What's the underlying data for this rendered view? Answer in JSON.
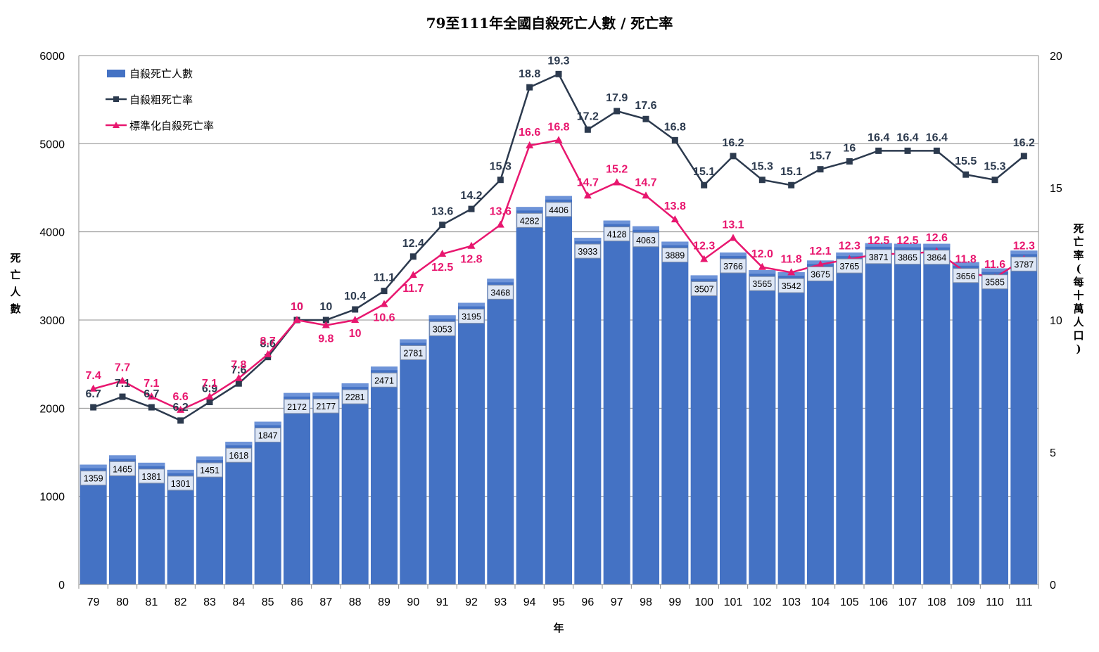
{
  "chart_data": {
    "type": "bar",
    "title": "79至111年全國自殺死亡人數 / 死亡率",
    "xlabel": "年",
    "ylabel": "死亡人數",
    "y2label": "死亡率(每十萬人口)",
    "ylim": [
      0,
      6000
    ],
    "y2lim": [
      0,
      20
    ],
    "yticks": [
      0,
      1000,
      2000,
      3000,
      4000,
      5000,
      6000
    ],
    "y2ticks": [
      0,
      5,
      10,
      15,
      20
    ],
    "grid": true,
    "legend_position": "top-left",
    "categories": [
      "79",
      "80",
      "81",
      "82",
      "83",
      "84",
      "85",
      "86",
      "87",
      "88",
      "89",
      "90",
      "91",
      "92",
      "93",
      "94",
      "95",
      "96",
      "97",
      "98",
      "99",
      "100",
      "101",
      "102",
      "103",
      "104",
      "105",
      "106",
      "107",
      "108",
      "109",
      "110",
      "111"
    ],
    "series": [
      {
        "name": "自殺死亡人數",
        "type": "bar",
        "axis": "left",
        "color": "#4472c4",
        "values": [
          1359,
          1465,
          1381,
          1301,
          1451,
          1618,
          1847,
          2172,
          2177,
          2281,
          2471,
          2781,
          3053,
          3195,
          3468,
          4282,
          4406,
          3933,
          4128,
          4063,
          3889,
          3507,
          3766,
          3565,
          3542,
          3675,
          3765,
          3871,
          3865,
          3864,
          3656,
          3585,
          3787
        ],
        "labels": [
          "1359",
          "1465",
          "1381",
          "1301",
          "1451",
          "1618",
          "1847",
          "2172",
          "2177",
          "2281",
          "2471",
          "2781",
          "3053",
          "3195",
          "3468",
          "4282",
          "4406",
          "3933",
          "4128",
          "4063",
          "3889",
          "3507",
          "3766",
          "3565",
          "3542",
          "3675",
          "3765",
          "3871",
          "3865",
          "3864",
          "3656",
          "3585",
          "3787"
        ]
      },
      {
        "name": "自殺粗死亡率",
        "type": "line",
        "axis": "right",
        "color": "#2c3a4e",
        "marker": "square",
        "values": [
          6.7,
          7.1,
          6.7,
          6.2,
          6.9,
          7.6,
          8.6,
          10,
          10,
          10.4,
          11.1,
          12.4,
          13.6,
          14.2,
          15.3,
          18.8,
          19.3,
          17.2,
          17.9,
          17.6,
          16.8,
          15.1,
          16.2,
          15.3,
          15.1,
          15.7,
          16,
          16.4,
          16.4,
          16.4,
          15.5,
          15.3,
          16.2
        ],
        "labels": [
          "6.7",
          "7.1",
          "6.7",
          "6.2",
          "6.9",
          "7.6",
          "8.6",
          "10",
          "10",
          "10.4",
          "11.1",
          "12.4",
          "13.6",
          "14.2",
          "15.3",
          "18.8",
          "19.3",
          "17.2",
          "17.9",
          "17.6",
          "16.8",
          "15.1",
          "16.2",
          "15.3",
          "15.1",
          "15.7",
          "16",
          "16.4",
          "16.4",
          "16.4",
          "15.5",
          "15.3",
          "16.2"
        ]
      },
      {
        "name": "標準化自殺死亡率",
        "type": "line",
        "axis": "right",
        "color": "#e8176f",
        "marker": "triangle",
        "values": [
          7.4,
          7.7,
          7.1,
          6.6,
          7.1,
          7.8,
          8.7,
          10,
          9.8,
          10,
          10.6,
          11.7,
          12.5,
          12.8,
          13.6,
          16.6,
          16.8,
          14.7,
          15.2,
          14.7,
          13.8,
          12.3,
          13.1,
          12.0,
          11.8,
          12.1,
          12.3,
          12.5,
          12.5,
          12.6,
          11.8,
          11.6,
          12.3
        ],
        "labels": [
          "7.4",
          "7.7",
          "7.1",
          "6.6",
          "7.1",
          "7.8",
          "8.7",
          "10",
          "9.8",
          "10",
          "10.6",
          "11.7",
          "12.5",
          "12.8",
          "13.6",
          "16.6",
          "16.8",
          "14.7",
          "15.2",
          "14.7",
          "13.8",
          "12.3",
          "13.1",
          "12.0",
          "11.8",
          "12.1",
          "12.3",
          "12.5",
          "12.5",
          "12.6",
          "11.8",
          "11.6",
          "12.3"
        ]
      }
    ]
  }
}
